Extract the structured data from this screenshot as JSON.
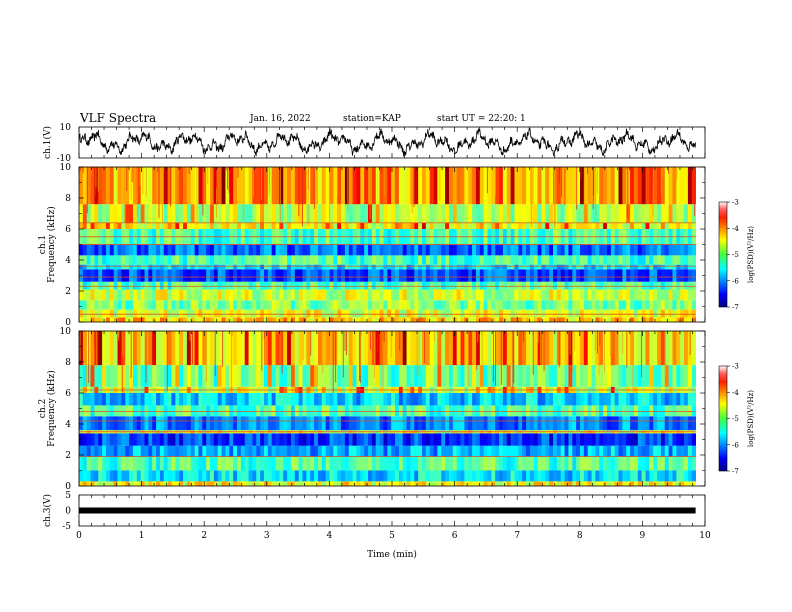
{
  "header": {
    "title": "VLF Spectra",
    "date": "Jan. 16, 2022",
    "station": "station=KAP",
    "start": "start UT =  22:20: 1"
  },
  "chart_data": [
    {
      "type": "line",
      "ylabel": "ch.1(V)",
      "ylim": [
        -10,
        10
      ],
      "yticks": [
        "10",
        "-10"
      ],
      "xlim": [
        0,
        10
      ],
      "description_series": "oscillating voltage waveform"
    },
    {
      "type": "heatmap",
      "ylabel_line1": "ch.1",
      "ylabel_line2": "Frequency (kHz)",
      "ylim": [
        0,
        10
      ],
      "yticks": [
        "0",
        "2",
        "4",
        "6",
        "8",
        "10"
      ],
      "xlim": [
        0,
        10
      ],
      "colorbar": {
        "label": "log(PSD)(V²/Hz)",
        "range": [
          -7,
          -3
        ],
        "ticks": [
          "-3",
          "-4",
          "-5",
          "-6",
          "-7"
        ]
      },
      "band_values": [
        {
          "freq": [
            0.0,
            0.3
          ],
          "level": -4.3
        },
        {
          "freq": [
            0.3,
            0.8
          ],
          "level": -4.6
        },
        {
          "freq": [
            0.8,
            1.4
          ],
          "level": -5.0
        },
        {
          "freq": [
            1.4,
            2.1
          ],
          "level": -4.7
        },
        {
          "freq": [
            2.1,
            2.6
          ],
          "level": -5.2
        },
        {
          "freq": [
            2.6,
            3.4
          ],
          "level": -6.2
        },
        {
          "freq": [
            3.4,
            3.7
          ],
          "level": -5.6
        },
        {
          "freq": [
            3.7,
            4.3
          ],
          "level": -5.2
        },
        {
          "freq": [
            4.3,
            5.0
          ],
          "level": -6.1
        },
        {
          "freq": [
            5.0,
            6.0
          ],
          "level": -5.2
        },
        {
          "freq": [
            6.0,
            6.4
          ],
          "level": -4.6
        },
        {
          "freq": [
            6.4,
            7.6
          ],
          "level": -4.8
        },
        {
          "freq": [
            7.6,
            10.0
          ],
          "level": -4.2
        }
      ],
      "lines_khz": [
        0.5,
        2.3,
        2.9,
        3.6,
        5.0,
        5.5,
        6.4
      ]
    },
    {
      "type": "heatmap",
      "ylabel_line1": "ch.2",
      "ylabel_line2": "Frequency (kHz)",
      "ylim": [
        0,
        10
      ],
      "yticks": [
        "0",
        "2",
        "4",
        "6",
        "8",
        "10"
      ],
      "xlim": [
        0,
        10
      ],
      "colorbar": {
        "label": "log(PSD)(V²/Hz)",
        "range": [
          -7,
          -3
        ],
        "ticks": [
          "-3",
          "-4",
          "-5",
          "-6",
          "-7"
        ]
      },
      "band_values": [
        {
          "freq": [
            0.0,
            0.3
          ],
          "level": -4.5
        },
        {
          "freq": [
            0.3,
            1.0
          ],
          "level": -5.6
        },
        {
          "freq": [
            1.0,
            1.9
          ],
          "level": -5.2
        },
        {
          "freq": [
            1.9,
            2.6
          ],
          "level": -5.8
        },
        {
          "freq": [
            2.6,
            3.4
          ],
          "level": -6.3
        },
        {
          "freq": [
            3.4,
            3.6
          ],
          "level": -4.6
        },
        {
          "freq": [
            3.6,
            4.5
          ],
          "level": -6.0
        },
        {
          "freq": [
            4.5,
            5.2
          ],
          "level": -5.2
        },
        {
          "freq": [
            5.2,
            6.0
          ],
          "level": -5.7
        },
        {
          "freq": [
            6.0,
            6.4
          ],
          "level": -4.7
        },
        {
          "freq": [
            6.4,
            7.8
          ],
          "level": -5.1
        },
        {
          "freq": [
            7.8,
            10.0
          ],
          "level": -4.4
        }
      ],
      "lines_khz": [
        1.9,
        3.5,
        4.2,
        4.8,
        6.2
      ]
    },
    {
      "type": "line",
      "ylabel": "ch.3(V)",
      "ylim": [
        -5,
        5
      ],
      "yticks": [
        "5",
        "0",
        "-5"
      ],
      "xlim": [
        0,
        10
      ],
      "xticks": [
        "0",
        "1",
        "2",
        "3",
        "4",
        "5",
        "6",
        "7",
        "8",
        "9",
        "10"
      ],
      "xlabel": "Time (min)",
      "constant_value": 0
    }
  ]
}
